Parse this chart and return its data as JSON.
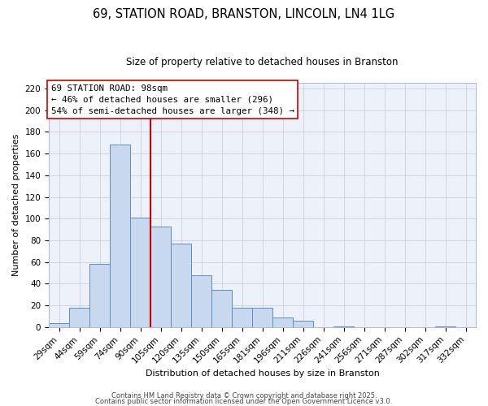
{
  "title": "69, STATION ROAD, BRANSTON, LINCOLN, LN4 1LG",
  "subtitle": "Size of property relative to detached houses in Branston",
  "xlabel": "Distribution of detached houses by size in Branston",
  "ylabel": "Number of detached properties",
  "bar_labels": [
    "29sqm",
    "44sqm",
    "59sqm",
    "74sqm",
    "90sqm",
    "105sqm",
    "120sqm",
    "135sqm",
    "150sqm",
    "165sqm",
    "181sqm",
    "196sqm",
    "211sqm",
    "226sqm",
    "241sqm",
    "256sqm",
    "271sqm",
    "287sqm",
    "302sqm",
    "317sqm",
    "332sqm"
  ],
  "bar_values": [
    4,
    18,
    58,
    168,
    101,
    93,
    77,
    48,
    34,
    18,
    18,
    9,
    6,
    0,
    1,
    0,
    0,
    0,
    0,
    1,
    0
  ],
  "bar_color": "#c8d9ef",
  "bar_edge_color": "#5a8fc2",
  "ylim": [
    0,
    225
  ],
  "yticks": [
    0,
    20,
    40,
    60,
    80,
    100,
    120,
    140,
    160,
    180,
    200,
    220
  ],
  "vline_x_index": 4.5,
  "vline_color": "#cc0000",
  "annotation_title": "69 STATION ROAD: 98sqm",
  "annotation_line1": "← 46% of detached houses are smaller (296)",
  "annotation_line2": "54% of semi-detached houses are larger (348) →",
  "footer1": "Contains HM Land Registry data © Crown copyright and database right 2025.",
  "footer2": "Contains public sector information licensed under the Open Government Licence v3.0.",
  "background_color": "#edf1fa",
  "grid_color": "#c8d0e0",
  "title_fontsize": 10.5,
  "subtitle_fontsize": 8.5,
  "axis_label_fontsize": 8,
  "tick_fontsize": 7.5,
  "annotation_fontsize": 7.8,
  "footer_fontsize": 6.0
}
